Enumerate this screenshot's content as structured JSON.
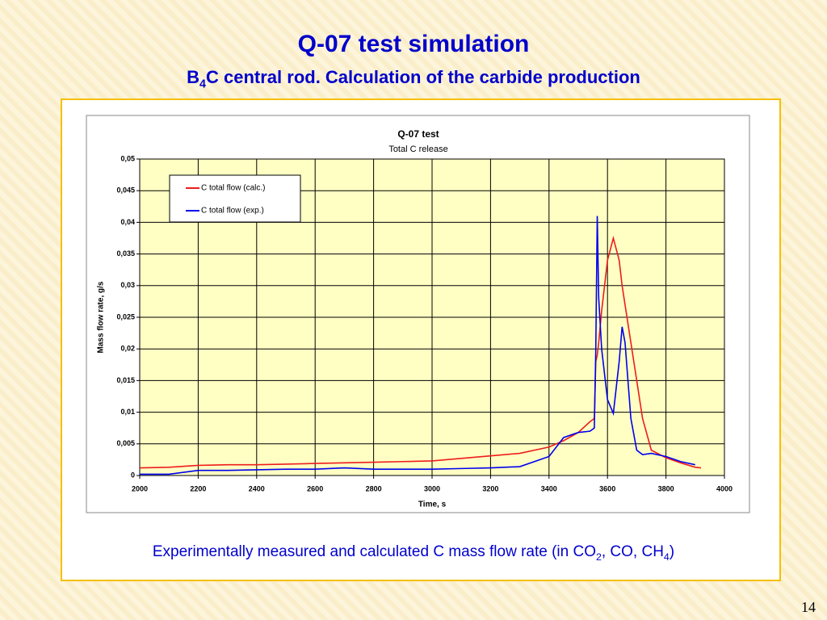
{
  "title": "Q-07 test simulation",
  "subtitle": [
    "B",
    "4",
    "C central rod. Calculation of the carbide production"
  ],
  "caption": [
    "Experimentally measured and calculated C mass flow rate (in CO",
    "2",
    ", CO, CH",
    "4",
    ")"
  ],
  "page_number": "14",
  "chart_data": {
    "type": "line",
    "title": "Q-07 test",
    "subtitle": "Total C release",
    "x_label": "Time, s",
    "y_label": "Mass flow rate, g/s",
    "x": [
      2000,
      2100,
      2200,
      2300,
      2400,
      2500,
      2600,
      2700,
      2800,
      2900,
      3000,
      3100,
      3200,
      3300,
      3400,
      3450,
      3500,
      3540,
      3555,
      3560,
      3565,
      3570,
      3580,
      3600,
      3620,
      3640,
      3650,
      3660,
      3680,
      3700,
      3720,
      3750,
      3800,
      3850,
      3900,
      3920
    ],
    "series": [
      {
        "name": "C total flow (calc.)",
        "color": "#ee1c1c",
        "values": [
          0.0012,
          0.0013,
          0.0016,
          0.0017,
          0.0017,
          0.0018,
          0.0019,
          0.002,
          0.0021,
          0.0022,
          0.0023,
          0.0027,
          0.0031,
          0.0035,
          0.0045,
          0.0055,
          0.0068,
          0.0085,
          0.009,
          0.018,
          0.019,
          0.021,
          0.026,
          0.034,
          0.0375,
          0.034,
          0.03,
          0.027,
          0.021,
          0.015,
          0.009,
          0.004,
          0.0028,
          0.002,
          0.0013,
          0.0012
        ]
      },
      {
        "name": "C total flow (exp.)",
        "color": "#0000ee",
        "values": [
          0.0002,
          0.0002,
          0.0008,
          0.0008,
          0.0009,
          0.001,
          0.001,
          0.0012,
          0.001,
          0.001,
          0.001,
          0.0011,
          0.0012,
          0.0014,
          0.003,
          0.006,
          0.0068,
          0.007,
          0.0075,
          0.02,
          0.041,
          0.028,
          0.02,
          0.012,
          0.0098,
          0.018,
          0.0235,
          0.021,
          0.009,
          0.004,
          0.0033,
          0.0035,
          0.003,
          0.0022,
          0.0017,
          null
        ]
      }
    ],
    "xlim": [
      2000,
      4000
    ],
    "xticks": [
      2000,
      2200,
      2400,
      2600,
      2800,
      3000,
      3200,
      3400,
      3600,
      3800,
      4000
    ],
    "ylim": [
      0,
      0.05
    ],
    "yticks": [
      0,
      {
        "value": 0.005,
        "label": "0,005"
      },
      {
        "value": 0.01,
        "label": "0,01"
      },
      {
        "value": 0.015,
        "label": "0,015"
      },
      {
        "value": 0.02,
        "label": "0,02"
      },
      {
        "value": 0.025,
        "label": "0,025"
      },
      {
        "value": 0.03,
        "label": "0,03"
      },
      {
        "value": 0.035,
        "label": "0,035"
      },
      {
        "value": 0.04,
        "label": "0,04"
      },
      {
        "value": 0.045,
        "label": "0,045"
      },
      {
        "value": 0.05,
        "label": "0,05"
      }
    ],
    "grid": true,
    "legend": "upper left"
  }
}
